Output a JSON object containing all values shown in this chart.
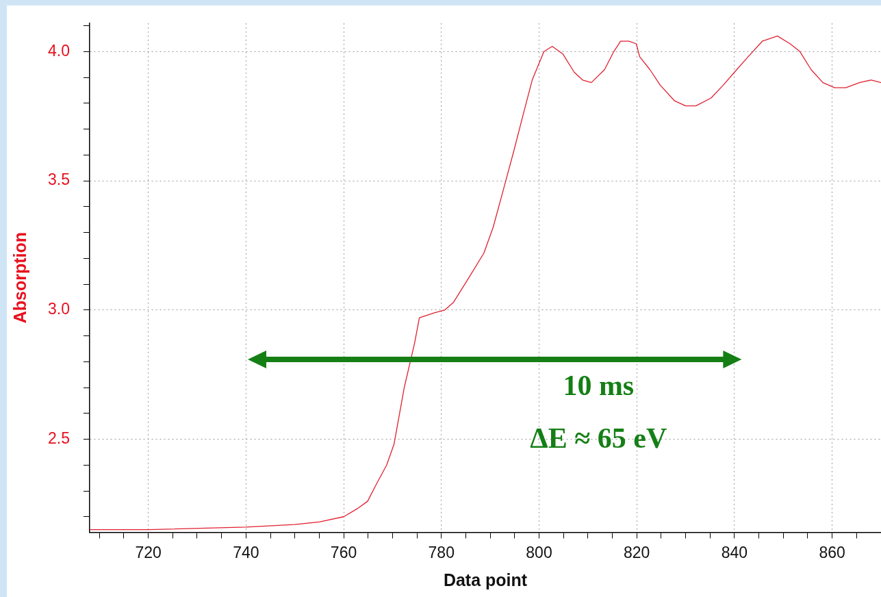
{
  "chart_data": {
    "type": "line",
    "xlabel": "Data point",
    "ylabel": "Absorption",
    "x": [
      708,
      720,
      740,
      750,
      755,
      760,
      762.7,
      764.9,
      766.8,
      768.8,
      770.3,
      772.4,
      774.5,
      775.5,
      778.7,
      780.7,
      782.5,
      785.8,
      788.7,
      790.6,
      792.9,
      794.9,
      796.8,
      798.6,
      801,
      802.7,
      804.9,
      807.2,
      808.9,
      810.7,
      813.4,
      815.3,
      816.7,
      818.4,
      819.9,
      820.6,
      822.7,
      824.8,
      827.7,
      830,
      832.1,
      835.2,
      837.7,
      840,
      842.8,
      845.7,
      848.8,
      851.4,
      853.4,
      855.7,
      858.1,
      860.5,
      862.8,
      865.6,
      868,
      870
    ],
    "series": [
      {
        "color": "#e02030",
        "values": [
          2.15,
          2.15,
          2.16,
          2.17,
          2.18,
          2.2,
          2.23,
          2.26,
          2.33,
          2.4,
          2.48,
          2.7,
          2.87,
          2.97,
          2.99,
          3.0,
          3.03,
          3.13,
          3.22,
          3.32,
          3.48,
          3.62,
          3.76,
          3.89,
          4.0,
          4.02,
          3.99,
          3.92,
          3.89,
          3.88,
          3.93,
          4.0,
          4.04,
          4.04,
          4.03,
          3.98,
          3.93,
          3.87,
          3.81,
          3.79,
          3.79,
          3.82,
          3.87,
          3.92,
          3.98,
          4.04,
          4.06,
          4.03,
          4.0,
          3.93,
          3.88,
          3.86,
          3.86,
          3.88,
          3.89,
          3.88
        ]
      }
    ],
    "xlim": [
      708,
      870
    ],
    "xticks": [
      {
        "value": 710,
        "label": null
      },
      {
        "value": 715,
        "label": null
      },
      720,
      {
        "value": 725,
        "label": null
      },
      {
        "value": 730,
        "label": null
      },
      {
        "value": 735,
        "label": null
      },
      740,
      {
        "value": 745,
        "label": null
      },
      {
        "value": 750,
        "label": null
      },
      {
        "value": 755,
        "label": null
      },
      760,
      {
        "value": 765,
        "label": null
      },
      {
        "value": 770,
        "label": null
      },
      {
        "value": 775,
        "label": null
      },
      780,
      {
        "value": 785,
        "label": null
      },
      {
        "value": 790,
        "label": null
      },
      {
        "value": 795,
        "label": null
      },
      800,
      {
        "value": 805,
        "label": null
      },
      {
        "value": 810,
        "label": null
      },
      {
        "value": 815,
        "label": null
      },
      820,
      {
        "value": 825,
        "label": null
      },
      {
        "value": 830,
        "label": null
      },
      {
        "value": 835,
        "label": null
      },
      840,
      {
        "value": 845,
        "label": null
      },
      {
        "value": 850,
        "label": null
      },
      {
        "value": 855,
        "label": null
      },
      860,
      {
        "value": 865,
        "label": null
      }
    ],
    "ylim": [
      2.14,
      4.11
    ],
    "yticks": [
      {
        "value": 2.2,
        "label": null
      },
      {
        "value": 2.3,
        "label": null
      },
      {
        "value": 2.4,
        "label": null
      },
      {
        "value": 2.5,
        "label": "2.5"
      },
      {
        "value": 2.6,
        "label": null
      },
      {
        "value": 2.7,
        "label": null
      },
      {
        "value": 2.8,
        "label": null
      },
      {
        "value": 2.9,
        "label": null
      },
      {
        "value": 3.0,
        "label": "3.0"
      },
      {
        "value": 3.1,
        "label": null
      },
      {
        "value": 3.2,
        "label": null
      },
      {
        "value": 3.3,
        "label": null
      },
      {
        "value": 3.4,
        "label": null
      },
      {
        "value": 3.5,
        "label": "3.5"
      },
      {
        "value": 3.6,
        "label": null
      },
      {
        "value": 3.7,
        "label": null
      },
      {
        "value": 3.8,
        "label": null
      },
      {
        "value": 3.9,
        "label": null
      },
      {
        "value": 4.0,
        "label": "4.0"
      },
      {
        "value": 4.1,
        "label": null
      }
    ],
    "grid": true,
    "legend": false,
    "marker": "none",
    "line_style": "solid",
    "annotations": [
      "10 ms",
      "ΔE ≈ 65 eV"
    ]
  }
}
